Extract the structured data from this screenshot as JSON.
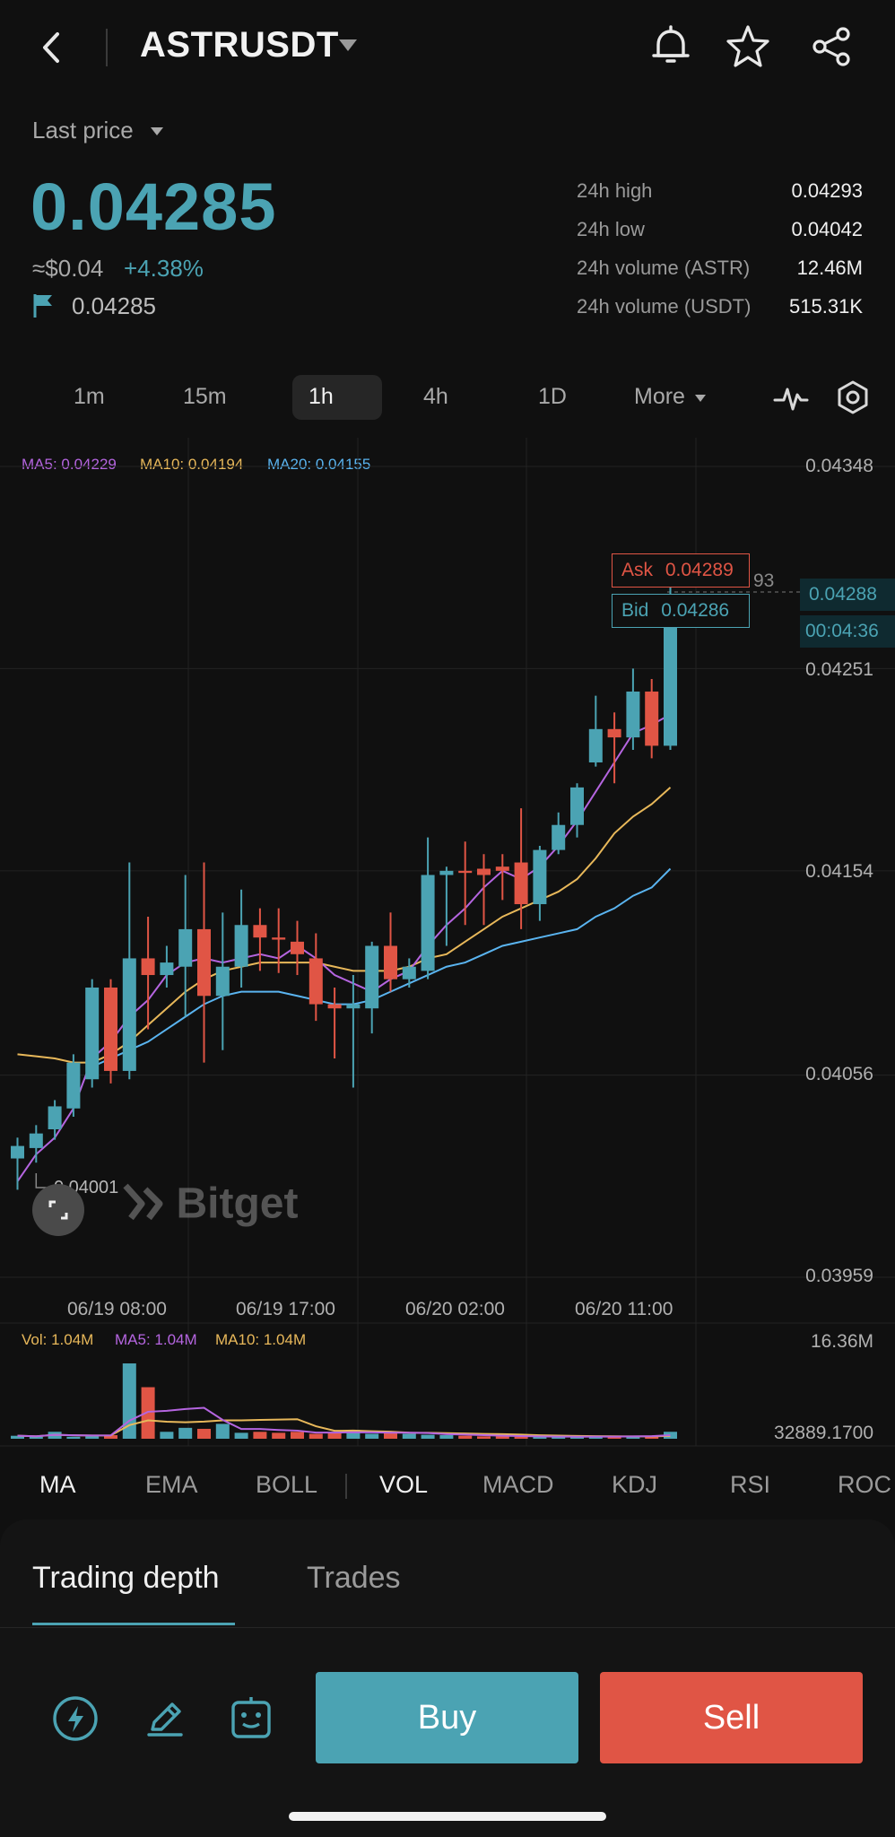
{
  "header": {
    "symbol": "ASTRUSDT",
    "icons": [
      "back-icon",
      "bell-icon",
      "star-icon",
      "share-icon"
    ]
  },
  "price": {
    "last_price_label": "Last price",
    "last_price": "0.04285",
    "approx_usd": "≈$0.04",
    "change": "+4.38%",
    "mark_price": "0.04285"
  },
  "stats": [
    {
      "label": "24h high",
      "value": "0.04293"
    },
    {
      "label": "24h low",
      "value": "0.04042"
    },
    {
      "label": "24h volume (ASTR)",
      "value": "12.46M"
    },
    {
      "label": "24h volume (USDT)",
      "value": "515.31K"
    }
  ],
  "timeframes": {
    "items": [
      "1m",
      "15m",
      "1h",
      "4h",
      "1D",
      "More"
    ],
    "selected": "1h"
  },
  "ma_legend": {
    "ma5": "MA5: 0.04229",
    "ma10": "MA10: 0.04194",
    "ma20": "MA20: 0.04155"
  },
  "chart_labels": {
    "y_ticks": [
      "0.04348",
      "0.04251",
      "0.04154",
      "0.04056",
      "0.03959"
    ],
    "x_ticks": [
      "06/19 08:00",
      "06/19 17:00",
      "06/20 02:00",
      "06/20 11:00"
    ],
    "ask_label": "Ask",
    "ask_value": "0.04289",
    "bid_label": "Bid",
    "bid_value": "0.04286",
    "current_price": "0.04288",
    "countdown": "00:04:36",
    "low_marker": "0.04001",
    "hidden_partial": "93",
    "watermark": "Bitget"
  },
  "vol_legend": {
    "vol": "Vol: 1.04M",
    "ma5": "MA5: 1.04M",
    "ma10": "MA10: 1.04M",
    "max": "16.36M",
    "min": "32889.1700"
  },
  "indicators": {
    "main": [
      "MA",
      "EMA",
      "BOLL"
    ],
    "sub": [
      "VOL",
      "MACD",
      "KDJ",
      "RSI",
      "ROC"
    ],
    "active_main": "MA",
    "active_sub": "VOL"
  },
  "tabs": {
    "depth": "Trading depth",
    "trades": "Trades"
  },
  "actions": {
    "buy": "Buy",
    "sell": "Sell"
  },
  "colors": {
    "up": "#4ba3b3",
    "down": "#e05545",
    "ma5": "#b565e0",
    "ma10": "#e8b85a",
    "ma20": "#5ab4f0"
  },
  "chart_data": {
    "type": "candlestick",
    "interval": "1h",
    "y_ticks": [
      0.04348,
      0.04251,
      0.04154,
      0.04056,
      0.03959
    ],
    "ylim": [
      0.03959,
      0.04348
    ],
    "x_ticks": [
      "06/19 08:00",
      "06/19 17:00",
      "06/20 02:00",
      "06/20 11:00"
    ],
    "candles": [
      {
        "o": 0.04016,
        "h": 0.04026,
        "c": 0.04022,
        "l": 0.04001
      },
      {
        "o": 0.04021,
        "h": 0.04032,
        "c": 0.04028,
        "l": 0.04014
      },
      {
        "o": 0.0403,
        "h": 0.04044,
        "c": 0.04041,
        "l": 0.04025
      },
      {
        "o": 0.0404,
        "h": 0.04066,
        "c": 0.04062,
        "l": 0.04036
      },
      {
        "o": 0.04054,
        "h": 0.04102,
        "c": 0.04098,
        "l": 0.0405
      },
      {
        "o": 0.04098,
        "h": 0.04102,
        "c": 0.04058,
        "l": 0.04052
      },
      {
        "o": 0.04058,
        "h": 0.04158,
        "c": 0.04112,
        "l": 0.04054
      },
      {
        "o": 0.04112,
        "h": 0.04132,
        "c": 0.04104,
        "l": 0.04078
      },
      {
        "o": 0.04104,
        "h": 0.04118,
        "c": 0.0411,
        "l": 0.04098
      },
      {
        "o": 0.04108,
        "h": 0.04152,
        "c": 0.04126,
        "l": 0.04084
      },
      {
        "o": 0.04126,
        "h": 0.04158,
        "c": 0.04094,
        "l": 0.04062
      },
      {
        "o": 0.04094,
        "h": 0.04134,
        "c": 0.04108,
        "l": 0.04068
      },
      {
        "o": 0.04108,
        "h": 0.04145,
        "c": 0.04128,
        "l": 0.04098
      },
      {
        "o": 0.04128,
        "h": 0.04136,
        "c": 0.04122,
        "l": 0.04106
      },
      {
        "o": 0.04122,
        "h": 0.04136,
        "c": 0.04121,
        "l": 0.04105
      },
      {
        "o": 0.0412,
        "h": 0.0413,
        "c": 0.04114,
        "l": 0.04104
      },
      {
        "o": 0.04112,
        "h": 0.04124,
        "c": 0.0409,
        "l": 0.04082
      },
      {
        "o": 0.0409,
        "h": 0.04098,
        "c": 0.04088,
        "l": 0.04064
      },
      {
        "o": 0.04088,
        "h": 0.04104,
        "c": 0.0409,
        "l": 0.0405
      },
      {
        "o": 0.04088,
        "h": 0.0412,
        "c": 0.04118,
        "l": 0.04076
      },
      {
        "o": 0.04118,
        "h": 0.04134,
        "c": 0.04102,
        "l": 0.04096
      },
      {
        "o": 0.04102,
        "h": 0.04112,
        "c": 0.04108,
        "l": 0.04098
      },
      {
        "o": 0.04106,
        "h": 0.0417,
        "c": 0.04152,
        "l": 0.04102
      },
      {
        "o": 0.04152,
        "h": 0.04156,
        "c": 0.04154,
        "l": 0.04118
      },
      {
        "o": 0.04154,
        "h": 0.04168,
        "c": 0.04153,
        "l": 0.04128
      },
      {
        "o": 0.04155,
        "h": 0.04162,
        "c": 0.04152,
        "l": 0.04128
      },
      {
        "o": 0.04156,
        "h": 0.04162,
        "c": 0.04154,
        "l": 0.0414
      },
      {
        "o": 0.04158,
        "h": 0.04184,
        "c": 0.04138,
        "l": 0.04126
      },
      {
        "o": 0.04138,
        "h": 0.04166,
        "c": 0.04164,
        "l": 0.0413
      },
      {
        "o": 0.04164,
        "h": 0.04182,
        "c": 0.04176,
        "l": 0.04162
      },
      {
        "o": 0.04176,
        "h": 0.04196,
        "c": 0.04194,
        "l": 0.0417
      },
      {
        "o": 0.04206,
        "h": 0.04238,
        "c": 0.04222,
        "l": 0.04204
      },
      {
        "o": 0.04222,
        "h": 0.0423,
        "c": 0.04218,
        "l": 0.04196
      },
      {
        "o": 0.04218,
        "h": 0.04251,
        "c": 0.0424,
        "l": 0.04212
      },
      {
        "o": 0.0424,
        "h": 0.04246,
        "c": 0.04214,
        "l": 0.04208
      },
      {
        "o": 0.04214,
        "h": 0.04293,
        "c": 0.04286,
        "l": 0.04212
      }
    ],
    "ma5": [
      0.04005,
      0.04018,
      0.04026,
      0.0404,
      0.04064,
      0.04072,
      0.04084,
      0.04092,
      0.04104,
      0.0411,
      0.04112,
      0.0411,
      0.04112,
      0.04114,
      0.04112,
      0.04118,
      0.04112,
      0.04104,
      0.041,
      0.04096,
      0.04102,
      0.04106,
      0.04118,
      0.04128,
      0.04136,
      0.04146,
      0.04154,
      0.0415,
      0.04156,
      0.04166,
      0.04178,
      0.04192,
      0.04206,
      0.0422,
      0.04224,
      0.04229
    ],
    "ma10": [
      0.04066,
      0.04065,
      0.04064,
      0.04062,
      0.04062,
      0.04066,
      0.04072,
      0.0408,
      0.04088,
      0.04096,
      0.04102,
      0.04106,
      0.04108,
      0.0411,
      0.0411,
      0.0411,
      0.0411,
      0.04108,
      0.04106,
      0.04106,
      0.04106,
      0.04108,
      0.04112,
      0.04114,
      0.0412,
      0.04126,
      0.04132,
      0.04136,
      0.0414,
      0.04144,
      0.0415,
      0.0416,
      0.04172,
      0.0418,
      0.04186,
      0.04194
    ],
    "ma20": [
      null,
      null,
      null,
      null,
      0.0406,
      0.04064,
      0.04068,
      0.04072,
      0.04078,
      0.04084,
      0.0409,
      0.04094,
      0.04096,
      0.04096,
      0.04096,
      0.04094,
      0.04092,
      0.0409,
      0.0409,
      0.04092,
      0.04096,
      0.041,
      0.04104,
      0.04108,
      0.0411,
      0.04114,
      0.04118,
      0.0412,
      0.04122,
      0.04124,
      0.04126,
      0.04132,
      0.04136,
      0.04142,
      0.04146,
      0.04155
    ],
    "volumes": [
      0.15,
      0.1,
      0.35,
      0.1,
      0.12,
      0.18,
      3.8,
      2.6,
      0.35,
      0.55,
      0.5,
      0.75,
      0.3,
      0.35,
      0.3,
      0.35,
      0.25,
      0.3,
      0.45,
      0.25,
      0.28,
      0.25,
      0.2,
      0.18,
      0.15,
      0.12,
      0.12,
      0.1,
      0.1,
      0.1,
      0.1,
      0.15,
      0.1,
      0.15,
      0.15,
      0.35
    ]
  }
}
